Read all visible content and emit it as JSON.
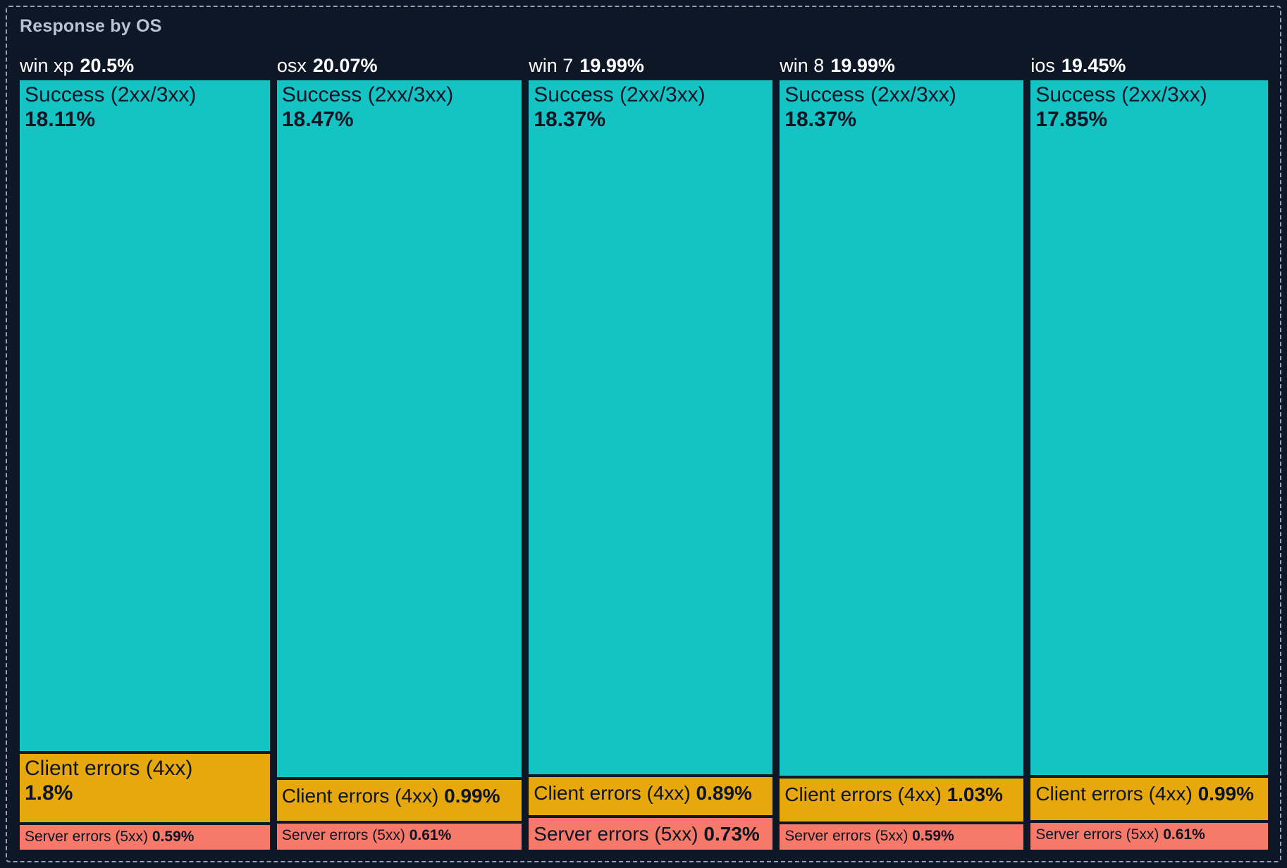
{
  "panel": {
    "title": "Response by OS"
  },
  "chart_data": {
    "type": "treemap",
    "title": "Response by OS",
    "value_unit": "%",
    "layout": "one column per OS group, widths proportional to group share; segments stacked vertically per status, heights proportional to value",
    "legend": "none",
    "colors": {
      "success": "#14c4c4",
      "client_errors": "#e7a80e",
      "server_errors": "#f7796a",
      "background": "#0d1726",
      "panel_border": "#93a3bf",
      "panel_title_text": "#b9c4d3",
      "group_header_text": "#ffffff",
      "cell_text": "#0c1524"
    },
    "groups": [
      {
        "name": "win xp",
        "share": 20.5,
        "share_label": "20.5%",
        "segments": [
          {
            "kind": "success",
            "label": "Success (2xx/3xx)",
            "value": 18.11,
            "value_label": "18.11%"
          },
          {
            "kind": "client_errors",
            "label": "Client errors (4xx)",
            "value": 1.8,
            "value_label": "1.8%"
          },
          {
            "kind": "server_errors",
            "label": "Server errors (5xx)",
            "value": 0.59,
            "value_label": "0.59%"
          }
        ]
      },
      {
        "name": "osx",
        "share": 20.07,
        "share_label": "20.07%",
        "segments": [
          {
            "kind": "success",
            "label": "Success (2xx/3xx)",
            "value": 18.47,
            "value_label": "18.47%"
          },
          {
            "kind": "client_errors",
            "label": "Client errors (4xx)",
            "value": 0.99,
            "value_label": "0.99%"
          },
          {
            "kind": "server_errors",
            "label": "Server errors (5xx)",
            "value": 0.61,
            "value_label": "0.61%"
          }
        ]
      },
      {
        "name": "win 7",
        "share": 19.99,
        "share_label": "19.99%",
        "segments": [
          {
            "kind": "success",
            "label": "Success (2xx/3xx)",
            "value": 18.37,
            "value_label": "18.37%"
          },
          {
            "kind": "client_errors",
            "label": "Client errors (4xx)",
            "value": 0.89,
            "value_label": "0.89%"
          },
          {
            "kind": "server_errors",
            "label": "Server errors (5xx)",
            "value": 0.73,
            "value_label": "0.73%"
          }
        ]
      },
      {
        "name": "win 8",
        "share": 19.99,
        "share_label": "19.99%",
        "segments": [
          {
            "kind": "success",
            "label": "Success (2xx/3xx)",
            "value": 18.37,
            "value_label": "18.37%"
          },
          {
            "kind": "client_errors",
            "label": "Client errors (4xx)",
            "value": 1.03,
            "value_label": "1.03%"
          },
          {
            "kind": "server_errors",
            "label": "Server errors (5xx)",
            "value": 0.59,
            "value_label": "0.59%"
          }
        ]
      },
      {
        "name": "ios",
        "share": 19.45,
        "share_label": "19.45%",
        "segments": [
          {
            "kind": "success",
            "label": "Success (2xx/3xx)",
            "value": 17.85,
            "value_label": "17.85%"
          },
          {
            "kind": "client_errors",
            "label": "Client errors (4xx)",
            "value": 0.99,
            "value_label": "0.99%"
          },
          {
            "kind": "server_errors",
            "label": "Server errors (5xx)",
            "value": 0.61,
            "value_label": "0.61%"
          }
        ]
      }
    ]
  }
}
